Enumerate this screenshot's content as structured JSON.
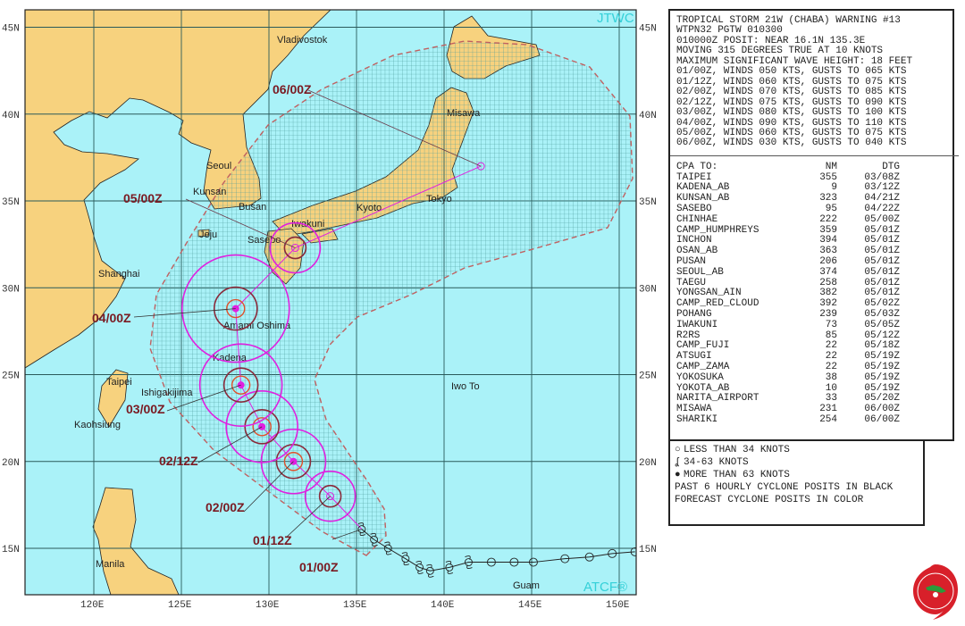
{
  "map": {
    "corner_labels": {
      "top": "JTWC",
      "bottom": "ATCF®"
    },
    "lat_ticks": [
      "45N",
      "40N",
      "35N",
      "30N",
      "25N",
      "20N",
      "15N"
    ],
    "lon_ticks": [
      "120E",
      "125E",
      "130E",
      "135E",
      "140E",
      "145E",
      "150E"
    ],
    "colors": {
      "ocean": "#aaf2f8",
      "land": "#f7d27e",
      "forecast": "#e020e0",
      "cone_outline": "#c06060",
      "dtg_label": "#7a1a22",
      "watermark": "#35d0d8"
    },
    "places": [
      "Vladivostok",
      "Seoul",
      "Kunsan",
      "Busan",
      "Jeju",
      "Sasebo",
      "Iwakuni",
      "Kyoto",
      "Tokyo",
      "Misawa",
      "Shanghai",
      "Amami Oshima",
      "Kadena",
      "Taipei",
      "Ishigakijima",
      "Kaohsiung",
      "Iwo To",
      "Manila",
      "Guam"
    ],
    "forecast_track": [
      {
        "dtg": "01/00Z",
        "lat": 16.1,
        "lon": 135.3,
        "winds": 50
      },
      {
        "dtg": "01/12Z",
        "lat": 18.0,
        "lon": 133.5,
        "winds": 60
      },
      {
        "dtg": "02/00Z",
        "lat": 20.0,
        "lon": 131.4,
        "winds": 70
      },
      {
        "dtg": "02/12Z",
        "lat": 22.0,
        "lon": 129.6,
        "winds": 75
      },
      {
        "dtg": "03/00Z",
        "lat": 24.4,
        "lon": 128.4,
        "winds": 80
      },
      {
        "dtg": "04/00Z",
        "lat": 28.8,
        "lon": 128.1,
        "winds": 90
      },
      {
        "dtg": "05/00Z",
        "lat": 32.3,
        "lon": 131.5,
        "winds": 60
      },
      {
        "dtg": "06/00Z",
        "lat": 37.0,
        "lon": 142.1,
        "winds": 30
      }
    ],
    "past_track": [
      {
        "lat": 16.1,
        "lon": 135.3,
        "cat": "34-63"
      },
      {
        "lat": 15.5,
        "lon": 136.0,
        "cat": "34-63"
      },
      {
        "lat": 15.0,
        "lon": 136.8,
        "cat": "34-63"
      },
      {
        "lat": 14.4,
        "lon": 137.8,
        "cat": "34-63"
      },
      {
        "lat": 13.9,
        "lon": 138.6,
        "cat": "34-63"
      },
      {
        "lat": 13.7,
        "lon": 139.2,
        "cat": "34-63"
      },
      {
        "lat": 13.9,
        "lon": 140.3,
        "cat": "34-63"
      },
      {
        "lat": 14.2,
        "lon": 141.4,
        "cat": "34-63"
      },
      {
        "lat": 14.2,
        "lon": 142.7,
        "cat": "<34"
      },
      {
        "lat": 14.2,
        "lon": 144.0,
        "cat": "<34"
      },
      {
        "lat": 14.2,
        "lon": 145.1,
        "cat": "<34"
      },
      {
        "lat": 14.4,
        "lon": 146.9,
        "cat": "<34"
      },
      {
        "lat": 14.5,
        "lon": 148.3,
        "cat": "<34"
      },
      {
        "lat": 14.7,
        "lon": 149.6,
        "cat": "<34"
      },
      {
        "lat": 14.8,
        "lon": 150.9,
        "cat": "<34"
      }
    ]
  },
  "warning": {
    "lines": [
      "TROPICAL STORM 21W (CHABA) WARNING #13",
      "WTPN32 PGTW 010300",
      "010000Z POSIT: NEAR 16.1N 135.3E",
      "MOVING 315 DEGREES TRUE AT 10 KNOTS",
      "MAXIMUM SIGNIFICANT WAVE HEIGHT: 18 FEET",
      "01/00Z, WINDS 050 KTS, GUSTS TO 065 KTS",
      "01/12Z, WINDS 060 KTS, GUSTS TO 075 KTS",
      "02/00Z, WINDS 070 KTS, GUSTS TO 085 KTS",
      "02/12Z, WINDS 075 KTS, GUSTS TO 090 KTS",
      "03/00Z, WINDS 080 KTS, GUSTS TO 100 KTS",
      "04/00Z, WINDS 090 KTS, GUSTS TO 110 KTS",
      "05/00Z, WINDS 060 KTS, GUSTS TO 075 KTS",
      "06/00Z, WINDS 030 KTS, GUSTS TO 040 KTS"
    ],
    "cpa_header": {
      "name": "CPA TO:",
      "nm": "NM",
      "dtg": "DTG"
    },
    "cpa": [
      {
        "name": "TAIPEI",
        "nm": "355",
        "dtg": "03/08Z"
      },
      {
        "name": "KADENA_AB",
        "nm": "9",
        "dtg": "03/12Z"
      },
      {
        "name": "KUNSAN_AB",
        "nm": "323",
        "dtg": "04/21Z"
      },
      {
        "name": "SASEBO",
        "nm": "95",
        "dtg": "04/22Z"
      },
      {
        "name": "CHINHAE",
        "nm": "222",
        "dtg": "05/00Z"
      },
      {
        "name": "CAMP_HUMPHREYS",
        "nm": "359",
        "dtg": "05/01Z"
      },
      {
        "name": "INCHON",
        "nm": "394",
        "dtg": "05/01Z"
      },
      {
        "name": "OSAN_AB",
        "nm": "363",
        "dtg": "05/01Z"
      },
      {
        "name": "PUSAN",
        "nm": "206",
        "dtg": "05/01Z"
      },
      {
        "name": "SEOUL_AB",
        "nm": "374",
        "dtg": "05/01Z"
      },
      {
        "name": "TAEGU",
        "nm": "258",
        "dtg": "05/01Z"
      },
      {
        "name": "YONGSAN_AIN",
        "nm": "382",
        "dtg": "05/01Z"
      },
      {
        "name": "CAMP_RED_CLOUD",
        "nm": "392",
        "dtg": "05/02Z"
      },
      {
        "name": "POHANG",
        "nm": "239",
        "dtg": "05/03Z"
      },
      {
        "name": "IWAKUNI",
        "nm": "73",
        "dtg": "05/05Z"
      },
      {
        "name": "R2RS",
        "nm": "85",
        "dtg": "05/12Z"
      },
      {
        "name": "CAMP_FUJI",
        "nm": "22",
        "dtg": "05/18Z"
      },
      {
        "name": "ATSUGI",
        "nm": "22",
        "dtg": "05/19Z"
      },
      {
        "name": "CAMP_ZAMA",
        "nm": "22",
        "dtg": "05/19Z"
      },
      {
        "name": "YOKOSUKA",
        "nm": "38",
        "dtg": "05/19Z"
      },
      {
        "name": "YOKOTA_AB",
        "nm": "10",
        "dtg": "05/19Z"
      },
      {
        "name": "NARITA_AIRPORT",
        "nm": "33",
        "dtg": "05/20Z"
      },
      {
        "name": "MISAWA",
        "nm": "231",
        "dtg": "06/00Z"
      },
      {
        "name": "SHARIKI",
        "nm": "254",
        "dtg": "06/00Z"
      }
    ]
  },
  "legend": {
    "items": [
      {
        "icon": "open-circle-icon",
        "symbol": "○",
        "label": "LESS THAN 34 KNOTS"
      },
      {
        "icon": "tropical-storm-icon",
        "symbol": "ʆ",
        "label": "34-63 KNOTS"
      },
      {
        "icon": "typhoon-icon",
        "symbol": "●",
        "label": "MORE THAN 63 KNOTS"
      }
    ],
    "notes": [
      "PAST 6 HOURLY CYCLONE POSITS IN BLACK",
      "FORECAST CYCLONE POSITS IN COLOR"
    ]
  }
}
